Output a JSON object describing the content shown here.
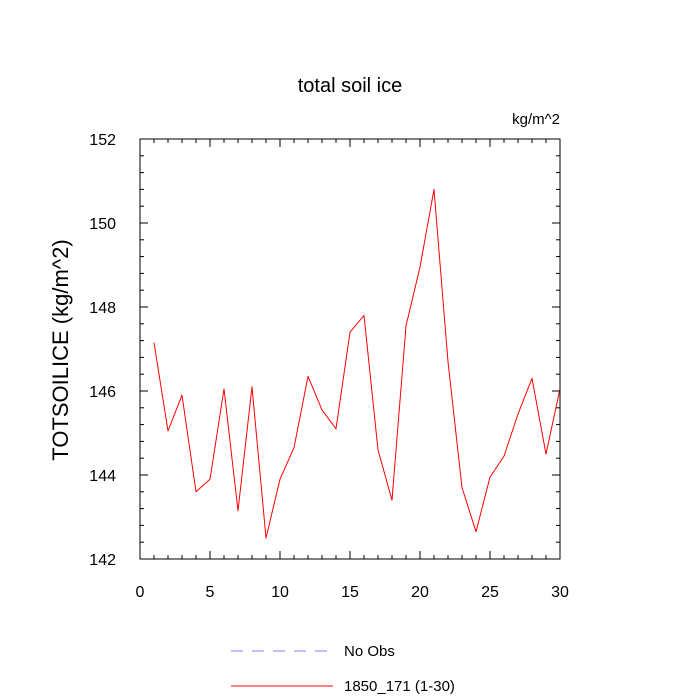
{
  "chart_data": {
    "type": "line",
    "title": "total soil ice",
    "units": "kg/m^2",
    "ylabel": "TOTSOILICE  (kg/m^2)",
    "xlabel": "",
    "xlim": [
      0,
      30
    ],
    "ylim": [
      142,
      152
    ],
    "x_ticks": [
      0,
      5,
      10,
      15,
      20,
      25,
      30
    ],
    "y_ticks": [
      142,
      144,
      146,
      148,
      150,
      152
    ],
    "grid": false,
    "legend_position": "bottom",
    "legend": [
      {
        "label": "No Obs",
        "color": "#8080ff",
        "style": "dashed"
      },
      {
        "label": "1850_171 (1-30)",
        "color": "#ff0000",
        "style": "solid"
      }
    ],
    "series": [
      {
        "name": "1850_171 (1-30)",
        "color": "#ff0000",
        "x": [
          1,
          2,
          3,
          4,
          5,
          6,
          7,
          8,
          9,
          10,
          11,
          12,
          13,
          14,
          15,
          16,
          17,
          18,
          19,
          20,
          21,
          22,
          23,
          24,
          25,
          26,
          27,
          28,
          29,
          30
        ],
        "y": [
          147.15,
          145.05,
          145.9,
          143.6,
          143.9,
          146.05,
          143.15,
          146.1,
          142.5,
          143.9,
          144.65,
          146.35,
          145.55,
          145.1,
          147.4,
          147.8,
          144.6,
          143.4,
          147.55,
          148.95,
          150.8,
          146.7,
          143.7,
          142.65,
          143.95,
          144.45,
          145.45,
          146.3,
          144.5,
          146.05
        ]
      }
    ]
  }
}
